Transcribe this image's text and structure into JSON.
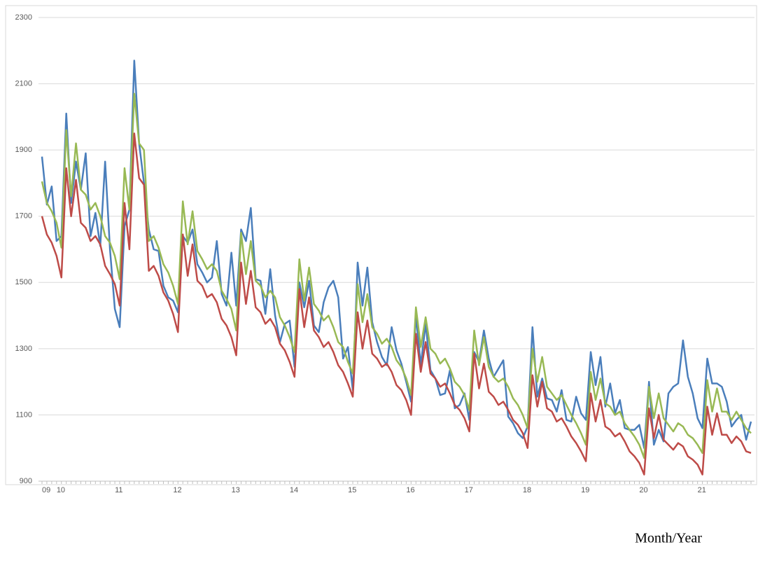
{
  "chart_data": {
    "type": "line",
    "x_label": "Month/Year",
    "categories": [
      "09",
      null,
      null,
      "10",
      null,
      null,
      null,
      null,
      null,
      null,
      null,
      null,
      null,
      null,
      null,
      "11",
      null,
      null,
      null,
      null,
      null,
      null,
      null,
      null,
      null,
      null,
      null,
      "12",
      null,
      null,
      null,
      null,
      null,
      null,
      null,
      null,
      null,
      null,
      null,
      "13",
      null,
      null,
      null,
      null,
      null,
      null,
      null,
      null,
      null,
      null,
      null,
      "14",
      null,
      null,
      null,
      null,
      null,
      null,
      null,
      null,
      null,
      null,
      null,
      "15",
      null,
      null,
      null,
      null,
      null,
      null,
      null,
      null,
      null,
      null,
      null,
      "16",
      null,
      null,
      null,
      null,
      null,
      null,
      null,
      null,
      null,
      null,
      null,
      "17",
      null,
      null,
      null,
      null,
      null,
      null,
      null,
      null,
      null,
      null,
      null,
      "18",
      null,
      null,
      null,
      null,
      null,
      null,
      null,
      null,
      null,
      null,
      null,
      "19",
      null,
      null,
      null,
      null,
      null,
      null,
      null,
      null,
      null,
      null,
      null,
      "20",
      null,
      null,
      null,
      null,
      null,
      null,
      null,
      null,
      null,
      null,
      null,
      "21",
      null,
      null,
      null,
      null,
      null,
      null,
      null,
      null,
      null,
      null,
      null
    ],
    "series": [
      {
        "color": "#4a7ebb",
        "values": [
          1880,
          1735,
          1790,
          1625,
          1640,
          2010,
          1740,
          1865,
          1780,
          1890,
          1640,
          1710,
          1610,
          1865,
          1600,
          1420,
          1365,
          1670,
          1720,
          2170,
          1920,
          1800,
          1660,
          1600,
          1595,
          1490,
          1455,
          1445,
          1410,
          1640,
          1620,
          1660,
          1555,
          1530,
          1500,
          1515,
          1625,
          1465,
          1430,
          1590,
          1430,
          1660,
          1625,
          1725,
          1510,
          1505,
          1405,
          1540,
          1400,
          1320,
          1375,
          1385,
          1245,
          1500,
          1425,
          1505,
          1370,
          1350,
          1440,
          1485,
          1505,
          1455,
          1270,
          1305,
          1175,
          1560,
          1430,
          1545,
          1380,
          1320,
          1275,
          1250,
          1365,
          1295,
          1255,
          1200,
          1140,
          1400,
          1250,
          1375,
          1235,
          1210,
          1160,
          1165,
          1235,
          1120,
          1130,
          1165,
          1085,
          1290,
          1260,
          1355,
          1270,
          1215,
          1240,
          1265,
          1095,
          1075,
          1045,
          1030,
          1065,
          1365,
          1155,
          1210,
          1150,
          1145,
          1110,
          1175,
          1085,
          1080,
          1155,
          1105,
          1085,
          1290,
          1190,
          1275,
          1125,
          1195,
          1105,
          1145,
          1060,
          1055,
          1055,
          1070,
          1000,
          1200,
          1010,
          1055,
          1020,
          1165,
          1185,
          1195,
          1325,
          1215,
          1165,
          1090,
          1060,
          1270,
          1195,
          1195,
          1185,
          1140,
          1065,
          1085,
          1100,
          1025,
          1080
        ]
      },
      {
        "color": "#98b954",
        "values": [
          1805,
          1740,
          1715,
          1680,
          1605,
          1960,
          1760,
          1920,
          1780,
          1765,
          1720,
          1740,
          1700,
          1640,
          1620,
          1580,
          1510,
          1845,
          1720,
          2070,
          1920,
          1900,
          1625,
          1640,
          1605,
          1555,
          1530,
          1490,
          1435,
          1745,
          1615,
          1715,
          1595,
          1570,
          1540,
          1555,
          1535,
          1475,
          1450,
          1420,
          1355,
          1650,
          1525,
          1625,
          1505,
          1490,
          1455,
          1475,
          1455,
          1395,
          1370,
          1335,
          1290,
          1570,
          1445,
          1545,
          1435,
          1415,
          1385,
          1400,
          1365,
          1320,
          1305,
          1260,
          1225,
          1495,
          1380,
          1465,
          1365,
          1345,
          1315,
          1330,
          1305,
          1265,
          1245,
          1210,
          1160,
          1425,
          1305,
          1395,
          1300,
          1285,
          1255,
          1270,
          1240,
          1200,
          1185,
          1160,
          1115,
          1355,
          1250,
          1335,
          1245,
          1215,
          1200,
          1210,
          1185,
          1150,
          1130,
          1100,
          1060,
          1300,
          1200,
          1275,
          1185,
          1165,
          1145,
          1160,
          1130,
          1100,
          1075,
          1045,
          1010,
          1230,
          1145,
          1210,
          1135,
          1125,
          1100,
          1110,
          1075,
          1055,
          1035,
          1010,
          970,
          1185,
          1090,
          1165,
          1090,
          1070,
          1050,
          1075,
          1065,
          1040,
          1030,
          1010,
          985,
          1205,
          1110,
          1180,
          1110,
          1110,
          1085,
          1110,
          1085,
          1060,
          1045
        ]
      },
      {
        "color": "#be4b48",
        "values": [
          1700,
          1645,
          1620,
          1580,
          1515,
          1845,
          1700,
          1810,
          1680,
          1665,
          1625,
          1640,
          1615,
          1550,
          1525,
          1495,
          1430,
          1740,
          1600,
          1950,
          1815,
          1795,
          1535,
          1550,
          1520,
          1470,
          1445,
          1405,
          1350,
          1645,
          1520,
          1615,
          1505,
          1490,
          1455,
          1465,
          1440,
          1390,
          1370,
          1335,
          1280,
          1560,
          1435,
          1535,
          1425,
          1410,
          1375,
          1390,
          1365,
          1315,
          1295,
          1260,
          1215,
          1480,
          1365,
          1455,
          1355,
          1335,
          1305,
          1320,
          1290,
          1250,
          1230,
          1195,
          1155,
          1410,
          1300,
          1385,
          1285,
          1270,
          1245,
          1255,
          1230,
          1190,
          1175,
          1145,
          1100,
          1345,
          1230,
          1320,
          1225,
          1210,
          1185,
          1195,
          1165,
          1130,
          1115,
          1090,
          1050,
          1285,
          1180,
          1255,
          1170,
          1155,
          1130,
          1140,
          1115,
          1085,
          1070,
          1045,
          1000,
          1220,
          1125,
          1200,
          1120,
          1110,
          1080,
          1090,
          1065,
          1035,
          1015,
          990,
          960,
          1165,
          1080,
          1145,
          1065,
          1055,
          1035,
          1045,
          1020,
          990,
          975,
          955,
          920,
          1120,
          1030,
          1100,
          1025,
          1010,
          995,
          1015,
          1005,
          975,
          965,
          950,
          920,
          1125,
          1040,
          1105,
          1040,
          1040,
          1015,
          1035,
          1020,
          990,
          985
        ]
      }
    ],
    "ylim": [
      900,
      2300
    ],
    "yticks": [
      900,
      1100,
      1300,
      1500,
      1700,
      1900,
      2100,
      2300
    ],
    "grid": true
  }
}
